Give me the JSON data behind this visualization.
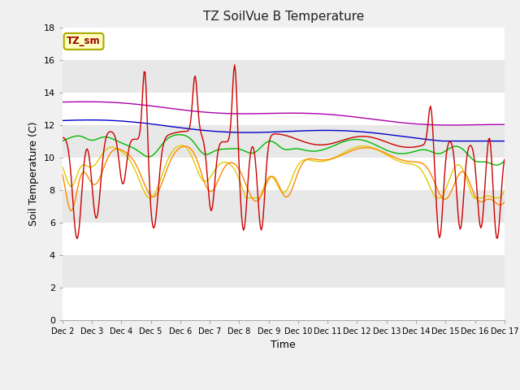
{
  "title": "TZ SoilVue B Temperature",
  "xlabel": "Time",
  "ylabel": "Soil Temperature (C)",
  "ylim": [
    0,
    18
  ],
  "yticks": [
    0,
    2,
    4,
    6,
    8,
    10,
    12,
    14,
    16,
    18
  ],
  "x_labels": [
    "Dec 2",
    "Dec 3",
    "Dec 4",
    "Dec 5",
    "Dec 6",
    "Dec 7",
    "Dec 8",
    "Dec 9",
    "Dec 10",
    "Dec 11",
    "Dec 12",
    "Dec 13",
    "Dec 14",
    "Dec 15",
    "Dec 16",
    "Dec 17"
  ],
  "legend_label": "TZ_sm",
  "series_colors": {
    "B-05_T": "#cc0000",
    "B-10_T": "#ff8800",
    "B-20_T": "#ddcc00",
    "B-30_T": "#00bb00",
    "B-40_T": "#0000cc",
    "B-50_T": "#aa00aa"
  },
  "fig_bg": "#f0f0f0",
  "plot_bg": "#e8e8e8",
  "band_white": "#ffffff",
  "title_fontsize": 11,
  "tick_fontsize": 8,
  "axis_label_fontsize": 9
}
